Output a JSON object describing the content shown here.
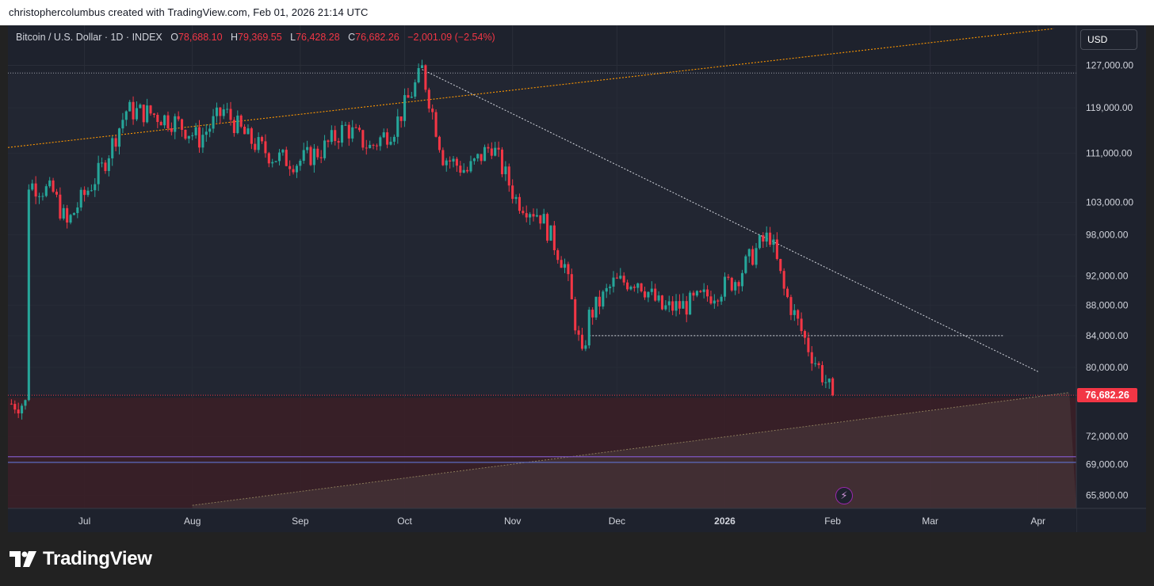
{
  "header": {
    "attribution": "christophercolumbus created with TradingView.com, Feb 01, 2026 21:14 UTC"
  },
  "legend": {
    "symbol": "Bitcoin / U.S. Dollar · 1D · INDEX",
    "open_label": "O",
    "open": "78,688.10",
    "high_label": "H",
    "high": "79,369.55",
    "low_label": "L",
    "low": "76,428.28",
    "close_label": "C",
    "close": "76,682.26",
    "change": "−2,001.09 (−2.54%)"
  },
  "currency_button": "USD",
  "last_price_label": "76,682.26",
  "footer": {
    "brand": "TradingView",
    "logo_icon": "tradingview-logo-icon"
  },
  "colors": {
    "up": "#26a69a",
    "down": "#f23645",
    "background": "#1e222d",
    "trendline_orange": "#ff9800",
    "support_purple": "#7e57c2"
  },
  "chart_data": {
    "type": "candlestick",
    "symbol": "BTCUSD",
    "interval": "1D",
    "x_ticks": [
      "Jul",
      "Aug",
      "Sep",
      "Oct",
      "Nov",
      "Dec",
      "2026",
      "Feb",
      "Mar",
      "Apr"
    ],
    "x_tick_dates": [
      "2025-07-01",
      "2025-08-01",
      "2025-09-01",
      "2025-10-01",
      "2025-11-01",
      "2025-12-01",
      "2026-01-01",
      "2026-02-01",
      "2026-03-01",
      "2026-04-01"
    ],
    "y_ticks": [
      127000,
      119000,
      111000,
      103000,
      98000,
      92000,
      88000,
      84000,
      80000,
      72000,
      69000,
      65800
    ],
    "y_tick_labels": [
      "127,000.00",
      "119,000.00",
      "111,000.00",
      "103,000.00",
      "98,000.00",
      "92,000.00",
      "88,000.00",
      "84,000.00",
      "80,000.00",
      "72,000.00",
      "69,000.00",
      "65,800.00"
    ],
    "y_scale": "log",
    "ylim": [
      64500,
      135000
    ],
    "last_price": 76682.26,
    "legend": "top-left",
    "grid": true,
    "weekly_closes": [
      {
        "d": "2025-06-15",
        "c": 106000
      },
      {
        "d": "2025-06-22",
        "c": 104500
      },
      {
        "d": "2025-06-29",
        "c": 102500
      },
      {
        "d": "2025-07-06",
        "c": 108500
      },
      {
        "d": "2025-07-13",
        "c": 118500
      },
      {
        "d": "2025-07-20",
        "c": 118000
      },
      {
        "d": "2025-07-27",
        "c": 116500
      },
      {
        "d": "2025-08-03",
        "c": 113500
      },
      {
        "d": "2025-08-10",
        "c": 118500
      },
      {
        "d": "2025-08-17",
        "c": 113500
      },
      {
        "d": "2025-08-24",
        "c": 110500
      },
      {
        "d": "2025-08-31",
        "c": 109500
      },
      {
        "d": "2025-09-07",
        "c": 111500
      },
      {
        "d": "2025-09-14",
        "c": 115500
      },
      {
        "d": "2025-09-21",
        "c": 112000
      },
      {
        "d": "2025-09-28",
        "c": 115500
      },
      {
        "d": "2025-10-05",
        "c": 124500
      },
      {
        "d": "2025-10-12",
        "c": 110500
      },
      {
        "d": "2025-10-19",
        "c": 108000
      },
      {
        "d": "2025-10-26",
        "c": 112500
      },
      {
        "d": "2025-11-02",
        "c": 103500
      },
      {
        "d": "2025-11-09",
        "c": 101000
      },
      {
        "d": "2025-11-16",
        "c": 93500
      },
      {
        "d": "2025-11-23",
        "c": 86500
      },
      {
        "d": "2025-11-30",
        "c": 91000
      },
      {
        "d": "2025-12-07",
        "c": 91500
      },
      {
        "d": "2025-12-14",
        "c": 87500
      },
      {
        "d": "2025-12-21",
        "c": 88000
      },
      {
        "d": "2025-12-28",
        "c": 89500
      },
      {
        "d": "2026-01-04",
        "c": 91500
      },
      {
        "d": "2026-01-11",
        "c": 96500
      },
      {
        "d": "2026-01-18",
        "c": 90000
      },
      {
        "d": "2026-01-25",
        "c": 82500
      },
      {
        "d": "2026-02-01",
        "c": 76682
      }
    ],
    "notable_points": [
      {
        "d": "2025-06-26",
        "label": "low",
        "v": 99500
      },
      {
        "d": "2025-10-06",
        "label": "high",
        "v": 126200
      },
      {
        "d": "2025-11-21",
        "label": "low",
        "v": 81000
      },
      {
        "d": "2026-01-14",
        "label": "high",
        "v": 97900
      },
      {
        "d": "2026-02-01",
        "label": "low",
        "v": 75700
      }
    ],
    "drawings": {
      "descending_trendline": [
        {
          "d": "2025-10-06",
          "v": 126200
        },
        {
          "d": "2026-04-01",
          "v": 79500
        }
      ],
      "orange_trendline": [
        {
          "d": "2025-06-09",
          "v": 112000
        },
        {
          "d": "2026-04-01",
          "v": 134000
        }
      ],
      "horizontal_top": 125500,
      "horizontal_support": 84000,
      "support_line_top": 69800,
      "support_line_bottom": 69200,
      "rising_lower_line": [
        {
          "d": "2025-08-01",
          "v": 64800
        },
        {
          "d": "2026-04-10",
          "v": 77000
        }
      ]
    }
  }
}
